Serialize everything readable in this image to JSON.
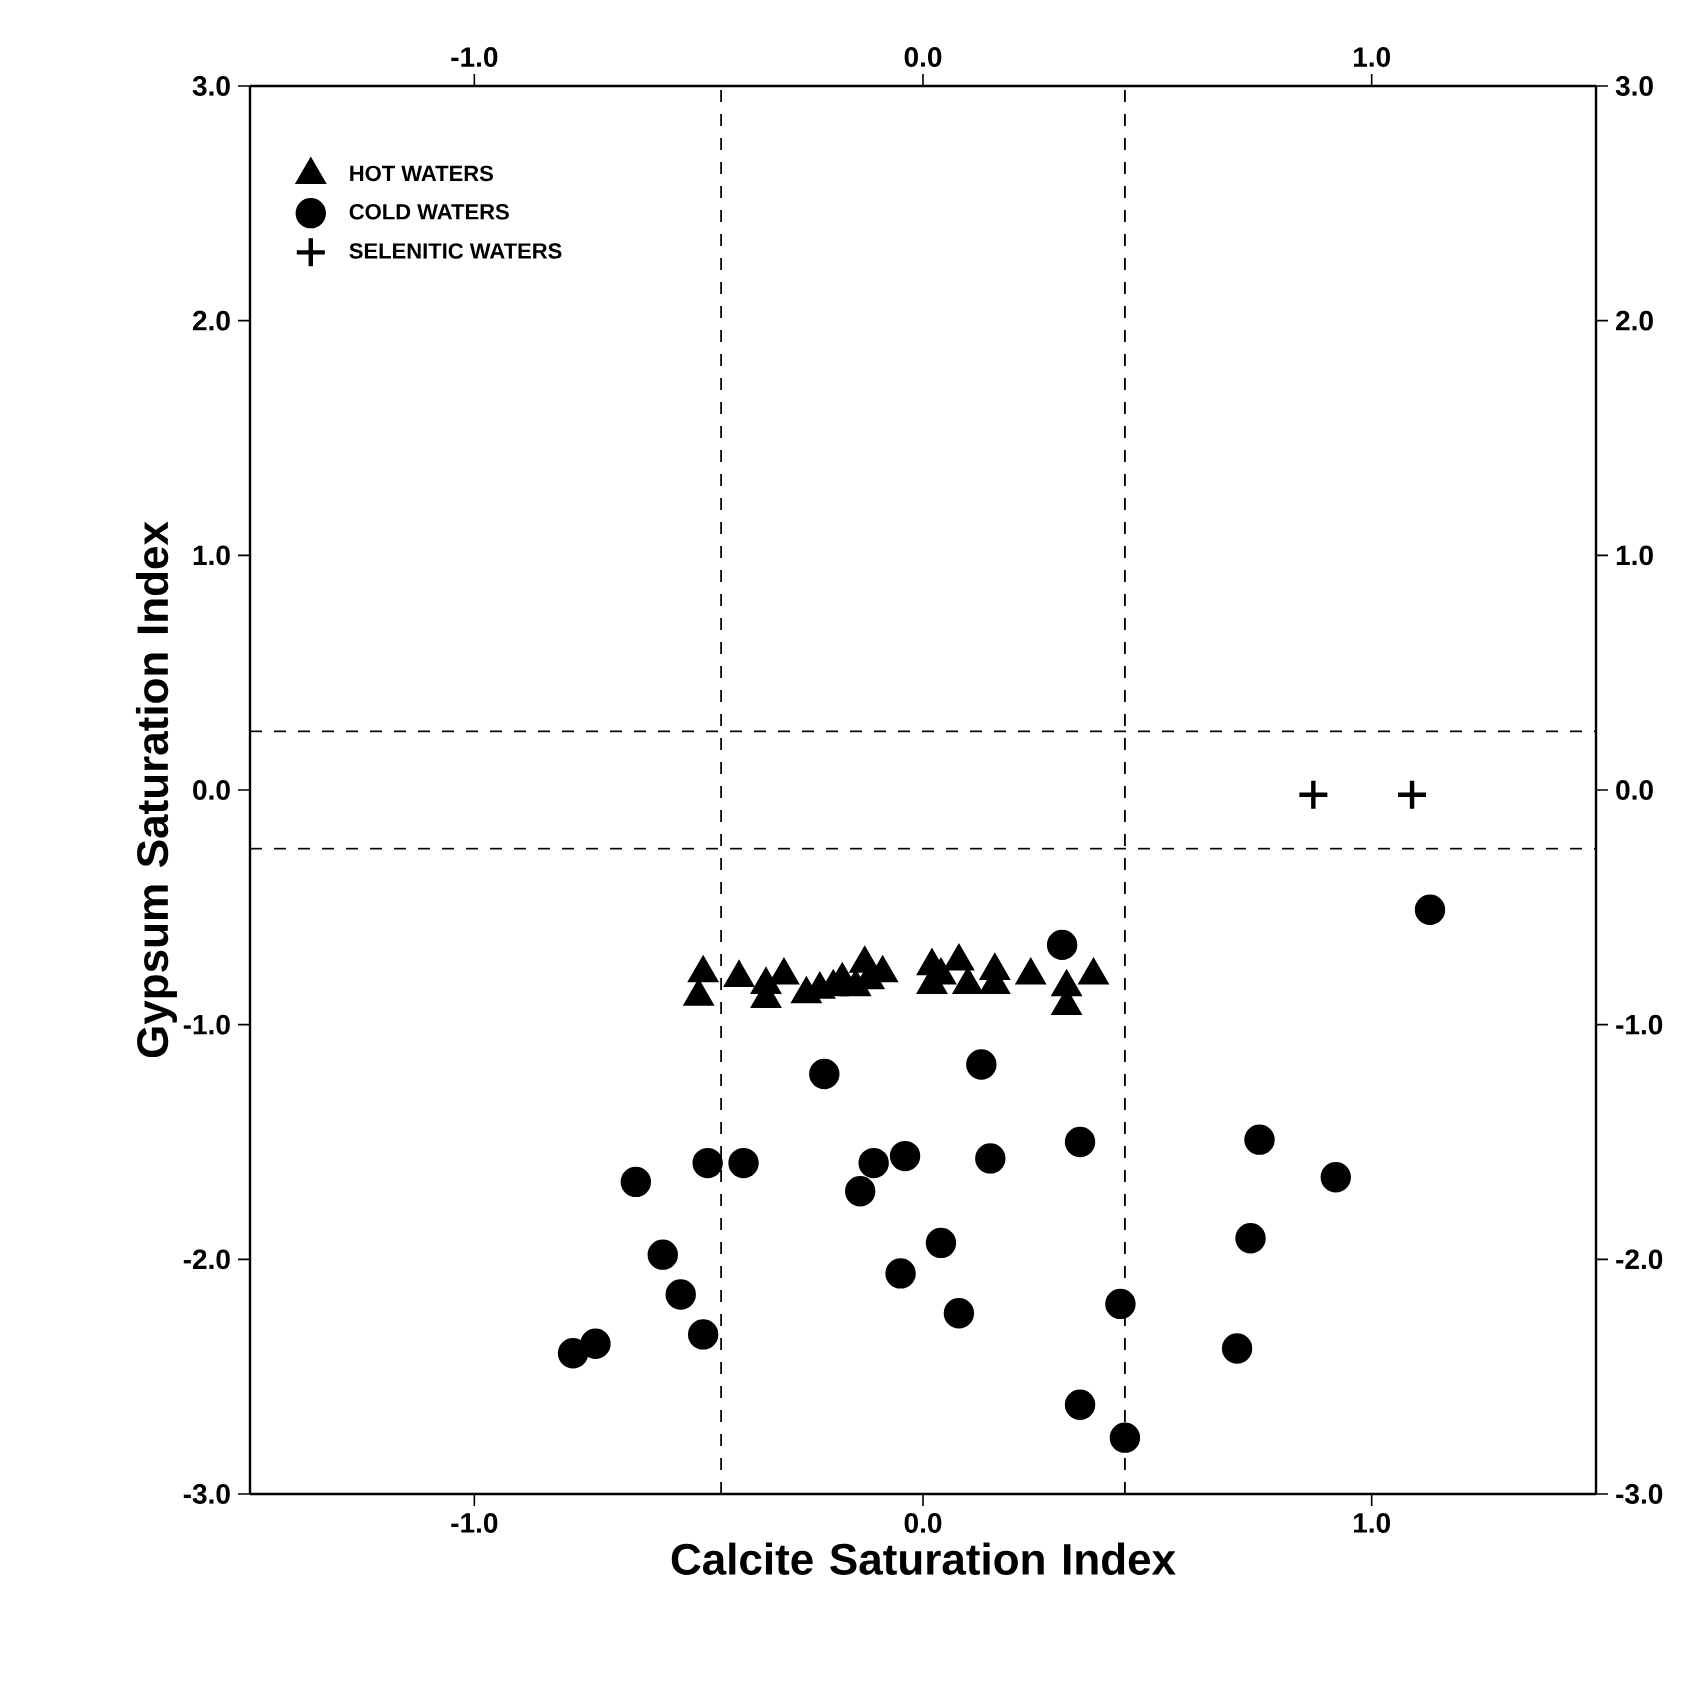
{
  "chart_data": {
    "type": "scatter",
    "xlabel": "Calcite Saturation Index",
    "ylabel": "Gypsum Saturation Index",
    "xlim": [
      -1.5,
      1.5
    ],
    "ylim": [
      -3.0,
      3.0
    ],
    "x2lim": [
      -1.5,
      1.5
    ],
    "y2lim": [
      -3.0,
      3.0
    ],
    "xticks": [
      {
        "value": -1.0,
        "label": "-1.0"
      },
      {
        "value": 0.0,
        "label": "0.0"
      },
      {
        "value": 1.0,
        "label": "1.0"
      }
    ],
    "x2ticks": [
      {
        "value": -1.0,
        "label": "-1.0"
      },
      {
        "value": 0.0,
        "label": "0.0"
      },
      {
        "value": 1.0,
        "label": "1.0"
      }
    ],
    "yticks": [
      {
        "value": -3.0,
        "label": "-3.0"
      },
      {
        "value": -2.0,
        "label": "-2.0"
      },
      {
        "value": -1.0,
        "label": "-1.0"
      },
      {
        "value": 0.0,
        "label": "0.0"
      },
      {
        "value": 1.0,
        "label": "1.0"
      },
      {
        "value": 2.0,
        "label": "2.0"
      },
      {
        "value": 3.0,
        "label": "3.0"
      }
    ],
    "y2ticks": [
      {
        "value": -3.0,
        "label": "-3.0"
      },
      {
        "value": -2.0,
        "label": "-2.0"
      },
      {
        "value": -1.0,
        "label": "-1.0"
      },
      {
        "value": 0.0,
        "label": "0.0"
      },
      {
        "value": 1.0,
        "label": "1.0"
      },
      {
        "value": 2.0,
        "label": "2.0"
      },
      {
        "value": 3.0,
        "label": "3.0"
      }
    ],
    "legend": "top left",
    "grid": false,
    "series": [
      {
        "name": "HOT WATERS",
        "color": "#000000",
        "marker": "triangle",
        "x": [
          -0.49,
          -0.5,
          -0.41,
          -0.35,
          -0.35,
          -0.31,
          -0.26,
          -0.23,
          -0.2,
          -0.18,
          -0.15,
          -0.13,
          -0.12,
          -0.09,
          0.02,
          0.02,
          0.04,
          0.08,
          0.1,
          0.16,
          0.16,
          0.24,
          0.32,
          0.32,
          0.38
        ],
        "values": [
          -0.78,
          -0.88,
          -0.8,
          -0.83,
          -0.89,
          -0.79,
          -0.87,
          -0.85,
          -0.84,
          -0.81,
          -0.84,
          -0.74,
          -0.81,
          -0.78,
          -0.75,
          -0.83,
          -0.79,
          -0.73,
          -0.83,
          -0.77,
          -0.83,
          -0.79,
          -0.84,
          -0.92,
          -0.79
        ]
      },
      {
        "name": "COLD WATERS",
        "color": "#000000",
        "marker": "circle",
        "x": [
          -0.22,
          0.13,
          -0.64,
          -0.48,
          -0.4,
          -0.11,
          -0.04,
          0.15,
          0.35,
          0.75,
          0.92,
          -0.14,
          -0.58,
          0.04,
          0.73,
          -0.54,
          -0.05,
          0.08,
          0.44,
          -0.49,
          -0.73,
          -0.78,
          0.7,
          0.35,
          0.45,
          0.31,
          1.13
        ],
        "values": [
          -1.21,
          -1.17,
          -1.67,
          -1.59,
          -1.59,
          -1.59,
          -1.56,
          -1.57,
          -1.5,
          -1.49,
          -1.65,
          -1.71,
          -1.98,
          -1.93,
          -1.91,
          -2.15,
          -2.06,
          -2.23,
          -2.19,
          -2.32,
          -2.36,
          -2.4,
          -2.38,
          -2.62,
          -2.76,
          -0.66,
          -0.51
        ]
      },
      {
        "name": "SELENITIC WATERS",
        "color": "#000000",
        "marker": "cross",
        "x": [
          0.87,
          1.09
        ],
        "values": [
          -0.02,
          -0.02
        ]
      }
    ],
    "ref_lines": [
      {
        "axis": "x",
        "value": -0.45,
        "line_style": "dashed"
      },
      {
        "axis": "x",
        "value": 0.45,
        "line_style": "dashed"
      },
      {
        "axis": "y",
        "value": 0.25,
        "line_style": "dashed"
      },
      {
        "axis": "y",
        "value": -0.25,
        "line_style": "dashed"
      }
    ]
  }
}
